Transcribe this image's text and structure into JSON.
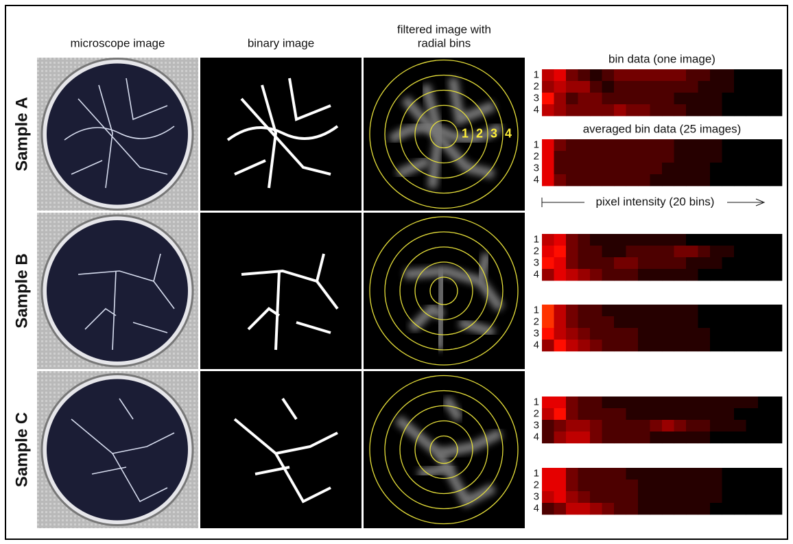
{
  "headers": [
    [
      "microscope image"
    ],
    [
      "binary image"
    ],
    [
      "filtered image with",
      "radial bins"
    ]
  ],
  "bin_labels": [
    "1",
    "2",
    "3",
    "4"
  ],
  "axis_label": "pixel intensity (20 bins)",
  "samples": [
    {
      "label": "Sample A",
      "heatmaps": [
        {
          "title": "bin data (one image)",
          "rows": [
            [
              5,
              6,
              3,
              2,
              1,
              2,
              3,
              3,
              3,
              3,
              3,
              3,
              2,
              2,
              1,
              1,
              0,
              0,
              0,
              0
            ],
            [
              4,
              5,
              4,
              4,
              2,
              1,
              2,
              2,
              2,
              2,
              2,
              2,
              2,
              1,
              1,
              1,
              0,
              0,
              0,
              0
            ],
            [
              7,
              4,
              2,
              3,
              3,
              2,
              2,
              2,
              2,
              2,
              2,
              1,
              1,
              1,
              1,
              0,
              0,
              0,
              0,
              0
            ],
            [
              5,
              4,
              3,
              3,
              3,
              3,
              4,
              3,
              3,
              2,
              2,
              2,
              1,
              1,
              1,
              0,
              0,
              0,
              0,
              0
            ]
          ]
        },
        {
          "title": "averaged bin data (25 images)",
          "rows": [
            [
              6,
              3,
              2,
              2,
              2,
              2,
              2,
              2,
              2,
              2,
              2,
              1,
              1,
              1,
              1,
              0,
              0,
              0,
              0,
              0
            ],
            [
              6,
              2,
              2,
              2,
              2,
              2,
              2,
              2,
              2,
              2,
              2,
              1,
              1,
              1,
              1,
              0,
              0,
              0,
              0,
              0
            ],
            [
              6,
              2,
              2,
              2,
              2,
              2,
              2,
              2,
              2,
              2,
              1,
              1,
              1,
              1,
              0,
              0,
              0,
              0,
              0,
              0
            ],
            [
              6,
              3,
              2,
              2,
              2,
              2,
              2,
              2,
              2,
              1,
              1,
              1,
              1,
              1,
              0,
              0,
              0,
              0,
              0,
              0
            ]
          ]
        }
      ]
    },
    {
      "label": "Sample B",
      "heatmaps": [
        {
          "rows": [
            [
              5,
              6,
              3,
              2,
              1,
              1,
              1,
              1,
              1,
              1,
              1,
              1,
              0,
              0,
              0,
              0,
              0,
              0,
              0,
              0
            ],
            [
              6,
              7,
              3,
              2,
              2,
              1,
              1,
              2,
              2,
              2,
              2,
              3,
              3,
              2,
              1,
              1,
              0,
              0,
              0,
              0
            ],
            [
              7,
              6,
              3,
              2,
              2,
              2,
              3,
              3,
              2,
              2,
              2,
              2,
              1,
              1,
              1,
              0,
              0,
              0,
              0,
              0
            ],
            [
              4,
              6,
              5,
              4,
              3,
              2,
              2,
              2,
              1,
              1,
              1,
              1,
              1,
              0,
              0,
              0,
              0,
              0,
              0,
              0
            ]
          ]
        },
        {
          "rows": [
            [
              8,
              5,
              3,
              2,
              2,
              1,
              1,
              1,
              1,
              1,
              1,
              1,
              1,
              0,
              0,
              0,
              0,
              0,
              0,
              0
            ],
            [
              8,
              5,
              3,
              2,
              2,
              2,
              1,
              1,
              1,
              1,
              1,
              1,
              1,
              0,
              0,
              0,
              0,
              0,
              0,
              0
            ],
            [
              7,
              5,
              4,
              3,
              2,
              2,
              2,
              2,
              1,
              1,
              1,
              1,
              1,
              1,
              0,
              0,
              0,
              0,
              0,
              0
            ],
            [
              4,
              7,
              5,
              4,
              3,
              2,
              2,
              2,
              1,
              1,
              1,
              1,
              1,
              1,
              0,
              0,
              0,
              0,
              0,
              0
            ]
          ]
        }
      ]
    },
    {
      "label": "Sample C",
      "heatmaps": [
        {
          "rows": [
            [
              6,
              6,
              3,
              2,
              2,
              1,
              1,
              1,
              1,
              1,
              1,
              1,
              1,
              1,
              1,
              1,
              1,
              1,
              0,
              0
            ],
            [
              5,
              7,
              3,
              2,
              2,
              2,
              2,
              1,
              1,
              1,
              1,
              1,
              1,
              1,
              1,
              1,
              0,
              0,
              0,
              0
            ],
            [
              2,
              3,
              4,
              4,
              3,
              2,
              2,
              2,
              2,
              3,
              4,
              3,
              2,
              2,
              1,
              1,
              1,
              0,
              0,
              0
            ],
            [
              2,
              4,
              5,
              5,
              3,
              2,
              2,
              2,
              2,
              1,
              1,
              1,
              1,
              1,
              0,
              0,
              0,
              0,
              0,
              0
            ]
          ]
        },
        {
          "rows": [
            [
              6,
              6,
              3,
              2,
              2,
              2,
              2,
              1,
              1,
              1,
              1,
              1,
              1,
              1,
              1,
              0,
              0,
              0,
              0,
              0
            ],
            [
              6,
              6,
              3,
              2,
              2,
              2,
              2,
              2,
              1,
              1,
              1,
              1,
              1,
              1,
              1,
              0,
              0,
              0,
              0,
              0
            ],
            [
              5,
              6,
              4,
              3,
              2,
              2,
              2,
              2,
              1,
              1,
              1,
              1,
              1,
              1,
              1,
              0,
              0,
              0,
              0,
              0
            ],
            [
              2,
              3,
              5,
              5,
              4,
              3,
              2,
              2,
              1,
              1,
              1,
              1,
              1,
              1,
              0,
              0,
              0,
              0,
              0,
              0
            ]
          ]
        }
      ]
    }
  ]
}
